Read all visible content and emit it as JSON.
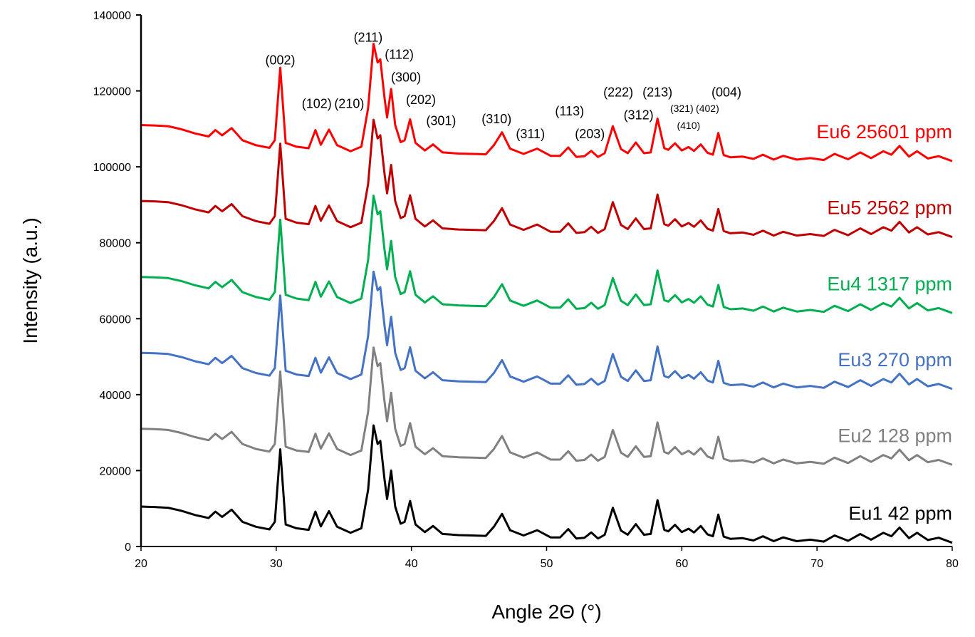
{
  "chart_data": {
    "type": "line",
    "xlabel": "Angle 2Θ (°)",
    "ylabel": "Intensity (a.u.)",
    "xlim": [
      20,
      80
    ],
    "ylim": [
      0,
      140000
    ],
    "xticks": [
      20,
      30,
      40,
      50,
      60,
      70,
      80
    ],
    "yticks": [
      0,
      20000,
      40000,
      60000,
      80000,
      100000,
      120000,
      140000
    ],
    "grid": false,
    "profile": {
      "description_free_base_pattern": true,
      "x": [
        20,
        21,
        22,
        23,
        24,
        25,
        25.5,
        26,
        26.7,
        27.5,
        28.5,
        29.5,
        29.9,
        30.3,
        30.7,
        31.5,
        32.4,
        32.9,
        33.3,
        33.9,
        34.5,
        35.5,
        36.3,
        36.8,
        37.2,
        37.5,
        37.7,
        38.0,
        38.2,
        38.5,
        38.8,
        39.2,
        39.5,
        39.9,
        40.3,
        41.0,
        41.6,
        42.3,
        43.5,
        44.5,
        45.5,
        46.1,
        46.7,
        47.3,
        48.3,
        49.3,
        50.3,
        51.0,
        51.6,
        52.2,
        52.8,
        53.3,
        53.8,
        54.3,
        54.9,
        55.5,
        56.0,
        56.6,
        57.2,
        57.7,
        58.2,
        58.7,
        59.0,
        59.5,
        60.0,
        60.5,
        60.9,
        61.4,
        61.9,
        62.3,
        62.7,
        63.1,
        63.6,
        64.5,
        65.3,
        66.0,
        66.8,
        67.5,
        68.5,
        69.5,
        70.5,
        71.3,
        72.3,
        73.2,
        74.0,
        74.9,
        75.5,
        76.1,
        76.8,
        77.4,
        78.2,
        79.0,
        80.0
      ],
      "y": [
        10500,
        10400,
        10200,
        9400,
        8300,
        7500,
        9200,
        7800,
        9700,
        6500,
        5200,
        4500,
        6500,
        25600,
        5800,
        4800,
        4400,
        9200,
        5300,
        9300,
        5200,
        3600,
        4800,
        15000,
        31900,
        27000,
        27800,
        18000,
        12500,
        20000,
        10500,
        6000,
        6500,
        12000,
        5800,
        3800,
        5400,
        3300,
        3000,
        2900,
        2800,
        5200,
        8600,
        4300,
        2900,
        4300,
        2400,
        2400,
        4600,
        2100,
        2300,
        3700,
        2100,
        3100,
        10200,
        4200,
        3100,
        5900,
        3100,
        3300,
        12200,
        4400,
        4000,
        5700,
        3800,
        4700,
        3700,
        5400,
        3200,
        2700,
        8400,
        2600,
        2000,
        2200,
        1600,
        2700,
        1400,
        2400,
        1400,
        1800,
        1300,
        2900,
        1500,
        3300,
        1800,
        3600,
        2700,
        5000,
        2200,
        3600,
        1700,
        2300,
        1000
      ]
    },
    "series": [
      {
        "name": "Eu1 42 ppm",
        "offset": 0,
        "color": "#000000"
      },
      {
        "name": "Eu2 128 ppm",
        "offset": 20500,
        "color": "#808080"
      },
      {
        "name": "Eu3 270 ppm",
        "offset": 40500,
        "color": "#4472C4"
      },
      {
        "name": "Eu4 1317 ppm",
        "offset": 60500,
        "color": "#00B050"
      },
      {
        "name": "Eu5 2562 ppm",
        "offset": 80500,
        "color": "#C00000"
      },
      {
        "name": "Eu6 25601 ppm",
        "offset": 100500,
        "color": "#FF0000"
      }
    ],
    "peak_labels": [
      {
        "text": "(002)",
        "x": 30.3,
        "y": 127000,
        "size": "normal"
      },
      {
        "text": "(102)",
        "x": 33.0,
        "y": 115500,
        "size": "normal"
      },
      {
        "text": "(210)",
        "x": 35.4,
        "y": 115500,
        "size": "normal"
      },
      {
        "text": "(211)",
        "x": 36.8,
        "y": 133000,
        "size": "normal"
      },
      {
        "text": "(112)",
        "x": 39.1,
        "y": 128500,
        "size": "normal"
      },
      {
        "text": "(300)",
        "x": 39.6,
        "y": 122500,
        "size": "normal"
      },
      {
        "text": "(202)",
        "x": 40.7,
        "y": 116500,
        "size": "normal"
      },
      {
        "text": "(301)",
        "x": 42.2,
        "y": 111000,
        "size": "normal"
      },
      {
        "text": "(310)",
        "x": 46.3,
        "y": 111500,
        "size": "normal"
      },
      {
        "text": "(311)",
        "x": 48.8,
        "y": 107500,
        "size": "normal"
      },
      {
        "text": "(113)",
        "x": 51.7,
        "y": 113500,
        "size": "normal"
      },
      {
        "text": "(203)",
        "x": 53.2,
        "y": 107500,
        "size": "normal"
      },
      {
        "text": "(222)",
        "x": 55.3,
        "y": 118500,
        "size": "normal"
      },
      {
        "text": "(312)",
        "x": 56.8,
        "y": 112500,
        "size": "normal"
      },
      {
        "text": "(213)",
        "x": 58.2,
        "y": 118500,
        "size": "normal"
      },
      {
        "text": "(321)",
        "x": 60.0,
        "y": 114500,
        "size": "small"
      },
      {
        "text": "(402)",
        "x": 61.9,
        "y": 114500,
        "size": "small"
      },
      {
        "text": "(410)",
        "x": 60.5,
        "y": 110000,
        "size": "small"
      },
      {
        "text": "(004)",
        "x": 63.3,
        "y": 118500,
        "size": "normal"
      }
    ]
  }
}
